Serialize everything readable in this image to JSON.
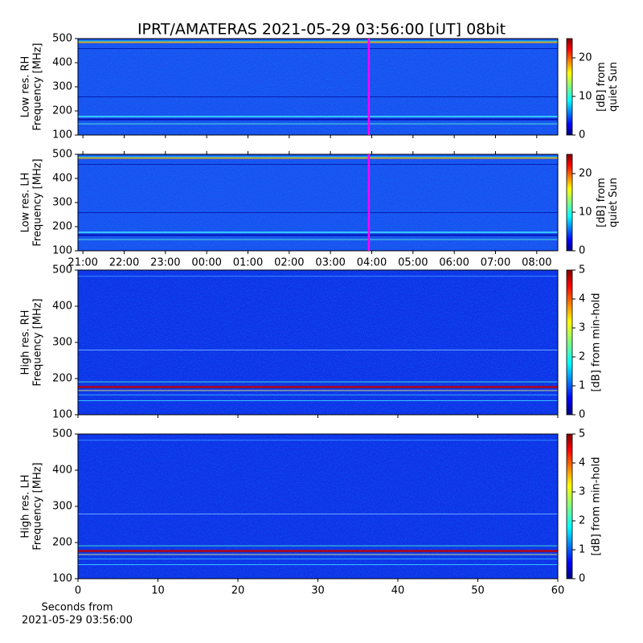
{
  "title": "IPRT/AMATERAS 2021-05-29 03:56:00 [UT]   08bit",
  "chart_data": [
    {
      "type": "heatmap",
      "ylabel": [
        "Low res. RH",
        "Frequency [MHz]"
      ],
      "ylim": [
        100,
        500
      ],
      "yticks": [
        100,
        200,
        300,
        400,
        500
      ],
      "xlim": [
        20.88,
        32.51
      ],
      "xticks": [
        {
          "value": 21,
          "label": "21:00"
        },
        {
          "value": 22,
          "label": "22:00"
        },
        {
          "value": 23,
          "label": "23:00"
        },
        {
          "value": 24,
          "label": "00:00"
        },
        {
          "value": 25,
          "label": "01:00"
        },
        {
          "value": 26,
          "label": "02:00"
        },
        {
          "value": 27,
          "label": "03:00"
        },
        {
          "value": 28,
          "label": "04:00"
        },
        {
          "value": 29,
          "label": "05:00"
        },
        {
          "value": 30,
          "label": "06:00"
        },
        {
          "value": 31,
          "label": "07:00"
        },
        {
          "value": 32,
          "label": "08:00"
        }
      ],
      "tick_labels": false,
      "marker": {
        "value": 27.93,
        "color": "#ff00ff"
      },
      "colorbar": {
        "label": [
          "[dB] from",
          "quiet Sun"
        ],
        "clim": [
          0,
          25
        ],
        "ticks": [
          0,
          10,
          20
        ]
      }
    },
    {
      "type": "heatmap",
      "ylabel": [
        "Low res. LH",
        "Frequency [MHz]"
      ],
      "ylim": [
        100,
        500
      ],
      "yticks": [
        100,
        200,
        300,
        400,
        500
      ],
      "xlim": [
        20.88,
        32.51
      ],
      "xticks": [
        {
          "value": 21,
          "label": "21:00"
        },
        {
          "value": 22,
          "label": "22:00"
        },
        {
          "value": 23,
          "label": "23:00"
        },
        {
          "value": 24,
          "label": "00:00"
        },
        {
          "value": 25,
          "label": "01:00"
        },
        {
          "value": 26,
          "label": "02:00"
        },
        {
          "value": 27,
          "label": "03:00"
        },
        {
          "value": 28,
          "label": "04:00"
        },
        {
          "value": 29,
          "label": "05:00"
        },
        {
          "value": 30,
          "label": "06:00"
        },
        {
          "value": 31,
          "label": "07:00"
        },
        {
          "value": 32,
          "label": "08:00"
        }
      ],
      "tick_labels": true,
      "marker": {
        "value": 27.93,
        "color": "#ff00ff"
      },
      "colorbar": {
        "label": [
          "[dB] from",
          "quiet Sun"
        ],
        "clim": [
          0,
          25
        ],
        "ticks": [
          0,
          10,
          20
        ]
      }
    },
    {
      "type": "heatmap",
      "ylabel": [
        "High res. RH",
        "Frequency [MHz]"
      ],
      "ylim": [
        100,
        500
      ],
      "yticks": [
        100,
        200,
        300,
        400,
        500
      ],
      "xlim": [
        0,
        60
      ],
      "xticks": [
        0,
        10,
        20,
        30,
        40,
        50,
        60
      ],
      "tick_labels": false,
      "colorbar": {
        "label": [
          "[dB] from min-hold"
        ],
        "clim": [
          0,
          5
        ],
        "ticks": [
          0,
          1,
          2,
          3,
          4,
          5
        ]
      }
    },
    {
      "type": "heatmap",
      "ylabel": [
        "High res. LH",
        "Frequency [MHz]"
      ],
      "ylim": [
        100,
        500
      ],
      "yticks": [
        100,
        200,
        300,
        400,
        500
      ],
      "xlim": [
        0,
        60
      ],
      "xticks": [
        0,
        10,
        20,
        30,
        40,
        50,
        60
      ],
      "tick_labels": true,
      "xlabel": [
        "Seconds from",
        "2021-05-29 03:56:00"
      ],
      "colorbar": {
        "label": [
          "[dB] from min-hold"
        ],
        "clim": [
          0,
          5
        ],
        "ticks": [
          0,
          1,
          2,
          3,
          4,
          5
        ]
      }
    }
  ]
}
